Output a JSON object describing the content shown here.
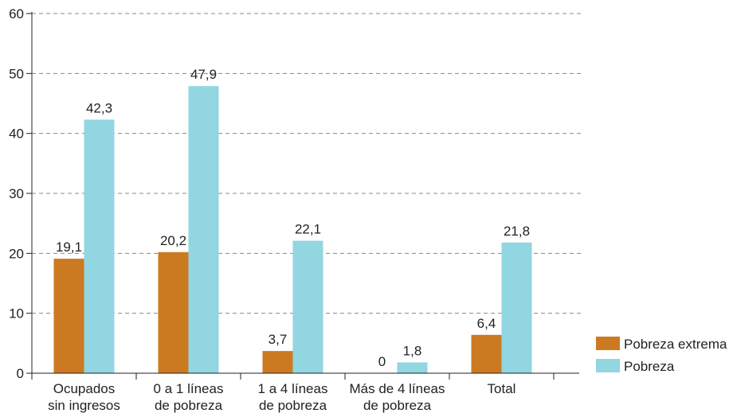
{
  "chart_data": {
    "type": "bar",
    "categories": [
      [
        "Ocupados",
        "sin ingresos"
      ],
      [
        "0 a 1 líneas",
        "de pobreza"
      ],
      [
        "1 a 4 líneas",
        "de pobreza"
      ],
      [
        "Más de 4 líneas",
        "de pobreza"
      ],
      [
        "Total"
      ]
    ],
    "series": [
      {
        "name": "Pobreza extrema",
        "color": "#cc7a22",
        "values": [
          19.1,
          20.2,
          3.7,
          0,
          6.4
        ],
        "labels": [
          "19,1",
          "20,2",
          "3,7",
          "0",
          "6,4"
        ]
      },
      {
        "name": "Pobreza",
        "color": "#92d6e1",
        "values": [
          42.3,
          47.9,
          22.1,
          1.8,
          21.8
        ],
        "labels": [
          "42,3",
          "47,9",
          "22,1",
          "1,8",
          "21,8"
        ]
      }
    ],
    "ylim": [
      0,
      60
    ],
    "yticks": [
      0,
      10,
      20,
      30,
      40,
      50,
      60
    ],
    "grid": true,
    "legend": "bottom-right",
    "title": "",
    "xlabel": "",
    "ylabel": ""
  }
}
